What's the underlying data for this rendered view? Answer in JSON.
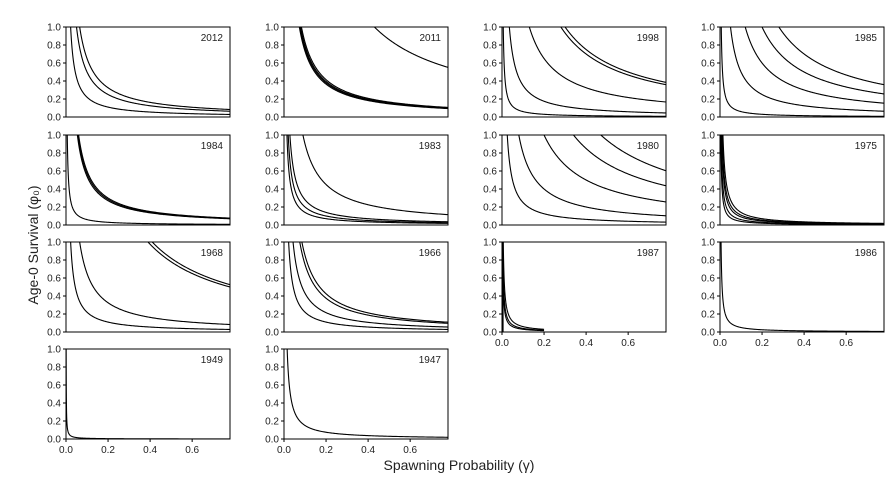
{
  "figure": {
    "ylabel": "Age-0 Survival (φ₀)",
    "xlabel": "Spawning Probability (γ)"
  },
  "chart_data": [
    {
      "type": "line",
      "panel_label": "2012",
      "row": 0,
      "col": 0,
      "show_x_ticks": false,
      "xlim": [
        0,
        0.78
      ],
      "ylim": [
        0,
        1.0
      ],
      "x_ticks": [
        "0.0",
        "0.2",
        "0.4",
        "0.6"
      ],
      "y_ticks": [
        "0.0",
        "0.2",
        "0.4",
        "0.6",
        "0.8",
        "1.0"
      ],
      "curves": [
        {
          "k": 0.05
        },
        {
          "k": 0.065
        },
        {
          "k": 0.022
        }
      ],
      "spikes": []
    },
    {
      "type": "line",
      "panel_label": "2011",
      "row": 0,
      "col": 1,
      "show_x_ticks": false,
      "xlim": [
        0,
        0.78
      ],
      "ylim": [
        0,
        1.0
      ],
      "x_ticks": [
        "0.0",
        "0.2",
        "0.4",
        "0.6"
      ],
      "y_ticks": [
        "0.0",
        "0.2",
        "0.4",
        "0.6",
        "0.8",
        "1.0"
      ],
      "curves": [
        {
          "k": 0.073
        },
        {
          "k": 0.076
        },
        {
          "k": 0.079
        },
        {
          "k": 0.083
        },
        {
          "k": 0.43
        }
      ],
      "spikes": []
    },
    {
      "type": "line",
      "panel_label": "1998",
      "row": 0,
      "col": 2,
      "show_x_ticks": false,
      "xlim": [
        0,
        0.78
      ],
      "ylim": [
        0,
        1.0
      ],
      "x_ticks": [
        "0.0",
        "0.2",
        "0.4",
        "0.6"
      ],
      "y_ticks": [
        "0.0",
        "0.2",
        "0.4",
        "0.6",
        "0.8",
        "1.0"
      ],
      "curves": [
        {
          "k": 0.3
        },
        {
          "k": 0.28
        },
        {
          "k": 0.13
        },
        {
          "k": 0.035
        },
        {
          "k": 0.006
        }
      ],
      "spikes": []
    },
    {
      "type": "line",
      "panel_label": "1985",
      "row": 0,
      "col": 3,
      "show_x_ticks": false,
      "xlim": [
        0,
        0.78
      ],
      "ylim": [
        0,
        1.0
      ],
      "x_ticks": [
        "0.0",
        "0.2",
        "0.4",
        "0.6"
      ],
      "y_ticks": [
        "0.0",
        "0.2",
        "0.4",
        "0.6",
        "0.8",
        "1.0"
      ],
      "curves": [
        {
          "k": 0.28
        },
        {
          "k": 0.2
        },
        {
          "k": 0.12
        },
        {
          "k": 0.05
        },
        {
          "k": 0.006
        }
      ],
      "spikes": []
    },
    {
      "type": "line",
      "panel_label": "1984",
      "row": 1,
      "col": 0,
      "show_x_ticks": false,
      "xlim": [
        0,
        0.78
      ],
      "ylim": [
        0,
        1.0
      ],
      "x_ticks": [
        "0.0",
        "0.2",
        "0.4",
        "0.6"
      ],
      "y_ticks": [
        "0.0",
        "0.2",
        "0.4",
        "0.6",
        "0.8",
        "1.0"
      ],
      "curves": [
        {
          "k": 0.054
        },
        {
          "k": 0.057
        },
        {
          "k": 0.06
        },
        {
          "k": 0.006
        }
      ],
      "spikes": []
    },
    {
      "type": "line",
      "panel_label": "1983",
      "row": 1,
      "col": 1,
      "show_x_ticks": false,
      "xlim": [
        0,
        0.78
      ],
      "ylim": [
        0,
        1.0
      ],
      "x_ticks": [
        "0.0",
        "0.2",
        "0.4",
        "0.6"
      ],
      "y_ticks": [
        "0.0",
        "0.2",
        "0.4",
        "0.6",
        "0.8",
        "1.0"
      ],
      "curves": [
        {
          "k": 0.09
        },
        {
          "k": 0.02
        },
        {
          "k": 0.028
        },
        {
          "k": 0.014
        }
      ],
      "spikes": []
    },
    {
      "type": "line",
      "panel_label": "1980",
      "row": 1,
      "col": 2,
      "show_x_ticks": false,
      "xlim": [
        0,
        0.78
      ],
      "ylim": [
        0,
        1.0
      ],
      "x_ticks": [
        "0.0",
        "0.2",
        "0.4",
        "0.6"
      ],
      "y_ticks": [
        "0.0",
        "0.2",
        "0.4",
        "0.6",
        "0.8",
        "1.0"
      ],
      "curves": [
        {
          "k": 0.47
        },
        {
          "k": 0.34
        },
        {
          "k": 0.2
        },
        {
          "k": 0.08
        },
        {
          "k": 0.025
        }
      ],
      "spikes": []
    },
    {
      "type": "line",
      "panel_label": "1975",
      "row": 1,
      "col": 3,
      "show_x_ticks": false,
      "xlim": [
        0,
        0.78
      ],
      "ylim": [
        0,
        1.0
      ],
      "x_ticks": [
        "0.0",
        "0.2",
        "0.4",
        "0.6"
      ],
      "y_ticks": [
        "0.0",
        "0.2",
        "0.4",
        "0.6",
        "0.8",
        "1.0"
      ],
      "curves": [
        {
          "k": 0.004
        },
        {
          "k": 0.006
        },
        {
          "k": 0.009
        },
        {
          "k": 0.011
        },
        {
          "k": 0.014
        }
      ],
      "spikes": []
    },
    {
      "type": "line",
      "panel_label": "1968",
      "row": 2,
      "col": 0,
      "show_x_ticks": false,
      "xlim": [
        0,
        0.78
      ],
      "ylim": [
        0,
        1.0
      ],
      "x_ticks": [
        "0.0",
        "0.2",
        "0.4",
        "0.6"
      ],
      "y_ticks": [
        "0.0",
        "0.2",
        "0.4",
        "0.6",
        "0.8",
        "1.0"
      ],
      "curves": [
        {
          "k": 0.41
        },
        {
          "k": 0.39
        },
        {
          "k": 0.065
        },
        {
          "k": 0.022
        }
      ],
      "spikes": []
    },
    {
      "type": "line",
      "panel_label": "1966",
      "row": 2,
      "col": 1,
      "show_x_ticks": false,
      "xlim": [
        0,
        0.78
      ],
      "ylim": [
        0,
        1.0
      ],
      "x_ticks": [
        "0.0",
        "0.2",
        "0.4",
        "0.6"
      ],
      "y_ticks": [
        "0.0",
        "0.2",
        "0.4",
        "0.6",
        "0.8",
        "1.0"
      ],
      "curves": [
        {
          "k": 0.085
        },
        {
          "k": 0.075
        },
        {
          "k": 0.043
        },
        {
          "k": 0.022
        }
      ],
      "spikes": []
    },
    {
      "type": "line",
      "panel_label": "1987",
      "row": 2,
      "col": 2,
      "show_x_ticks": true,
      "xlim": [
        0,
        0.78
      ],
      "ylim": [
        0,
        1.0
      ],
      "x_ticks": [
        "0.0",
        "0.2",
        "0.4",
        "0.6"
      ],
      "y_ticks": [
        "0.0",
        "0.2",
        "0.4",
        "0.6",
        "0.8",
        "1.0"
      ],
      "curves": [
        {
          "k": 0.006,
          "xmax": 0.2
        },
        {
          "k": 0.004,
          "xmax": 0.2
        },
        {
          "k": 0.003,
          "xmax": 0.2
        }
      ],
      "spikes": [
        {
          "x": 0.005,
          "y": 1.0
        }
      ]
    },
    {
      "type": "line",
      "panel_label": "1986",
      "row": 2,
      "col": 3,
      "show_x_ticks": true,
      "xlim": [
        0,
        0.78
      ],
      "ylim": [
        0,
        1.0
      ],
      "x_ticks": [
        "0.0",
        "0.2",
        "0.4",
        "0.6"
      ],
      "y_ticks": [
        "0.0",
        "0.2",
        "0.4",
        "0.6",
        "0.8",
        "1.0"
      ],
      "curves": [
        {
          "k": 0.005
        }
      ],
      "spikes": []
    },
    {
      "type": "line",
      "panel_label": "1949",
      "row": 3,
      "col": 0,
      "show_x_ticks": true,
      "xlim": [
        0,
        0.78
      ],
      "ylim": [
        0,
        1.0
      ],
      "x_ticks": [
        "0.0",
        "0.2",
        "0.4",
        "0.6"
      ],
      "y_ticks": [
        "0.0",
        "0.2",
        "0.4",
        "0.6",
        "0.8",
        "1.0"
      ],
      "curves": [
        {
          "k": 0.0008
        }
      ],
      "spikes": []
    },
    {
      "type": "line",
      "panel_label": "1947",
      "row": 3,
      "col": 1,
      "show_x_ticks": true,
      "xlim": [
        0,
        0.78
      ],
      "ylim": [
        0,
        1.0
      ],
      "x_ticks": [
        "0.0",
        "0.2",
        "0.4",
        "0.6"
      ],
      "y_ticks": [
        "0.0",
        "0.2",
        "0.4",
        "0.6",
        "0.8",
        "1.0"
      ],
      "curves": [
        {
          "k": 0.015
        }
      ],
      "spikes": []
    }
  ]
}
